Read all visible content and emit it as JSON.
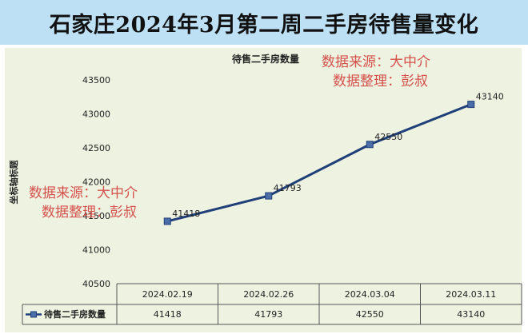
{
  "page": {
    "header_title": "石家庄2024年3月第二周二手房待售量变化"
  },
  "watermarks": [
    {
      "line1": "数据来源：大中介",
      "line2": "数据整理：彭叔"
    },
    {
      "line1": "数据来源：大中介",
      "line2": "数据整理：彭叔"
    }
  ],
  "colors": {
    "header_bg": "#bde0f5",
    "plot_bg": "#eef2e1",
    "line": "#1f3f78",
    "watermark": "#d5514c"
  },
  "chart_data": {
    "type": "line",
    "title": "待售二手房数量",
    "ylabel": "坐标轴标题",
    "xlabel": "",
    "categories": [
      "2024.02.19",
      "2024.02.26",
      "2024.03.04",
      "2024.03.11"
    ],
    "series": [
      {
        "name": "待售二手房数量",
        "values": [
          41418,
          41793,
          42550,
          43140
        ]
      }
    ],
    "ylim": [
      40500,
      43500
    ],
    "yticks": [
      40500,
      41000,
      41500,
      42000,
      42500,
      43000,
      43500
    ],
    "ytick_labels": [
      "40500",
      "41000",
      "41500",
      "42000",
      "42500",
      "43000",
      "43500"
    ],
    "data_labels": [
      "41418",
      "41793",
      "42550",
      "43140"
    ],
    "grid": false,
    "legend": "data-table",
    "data_table": true
  }
}
